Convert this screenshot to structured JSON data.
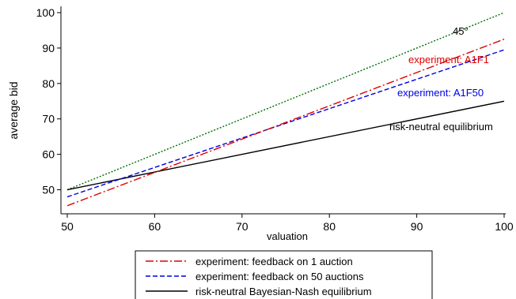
{
  "chart_data": {
    "type": "line",
    "xlabel": "valuation",
    "ylabel": "average bid",
    "xlim": [
      50,
      100
    ],
    "ylim": [
      45,
      100
    ],
    "x_ticks": [
      50,
      60,
      70,
      80,
      90,
      100
    ],
    "y_ticks": [
      50,
      60,
      70,
      80,
      90,
      100
    ],
    "grid": false,
    "legend_position": "bottom",
    "series": [
      {
        "name": "experiment: feedback on 1 auction",
        "x": [
          50,
          100
        ],
        "y": [
          45.5,
          92.5
        ],
        "color": "#e00000",
        "dash": "dashdot",
        "label": "experiment: A1F1"
      },
      {
        "name": "experiment: feedback on 50 auctions",
        "x": [
          50,
          100
        ],
        "y": [
          48,
          89.5
        ],
        "color": "#0000e0",
        "dash": "dash",
        "label": "experiment: A1F50"
      },
      {
        "name": "risk-neutral Bayesian-Nash equilibrium",
        "x": [
          50,
          100
        ],
        "y": [
          50,
          75
        ],
        "color": "#000000",
        "dash": "solid",
        "label": "risk-neutral equilibrium"
      },
      {
        "x": [
          50,
          100
        ],
        "y": [
          50,
          100
        ],
        "color": "#007000",
        "dash": "dot",
        "label": "45°"
      }
    ]
  }
}
